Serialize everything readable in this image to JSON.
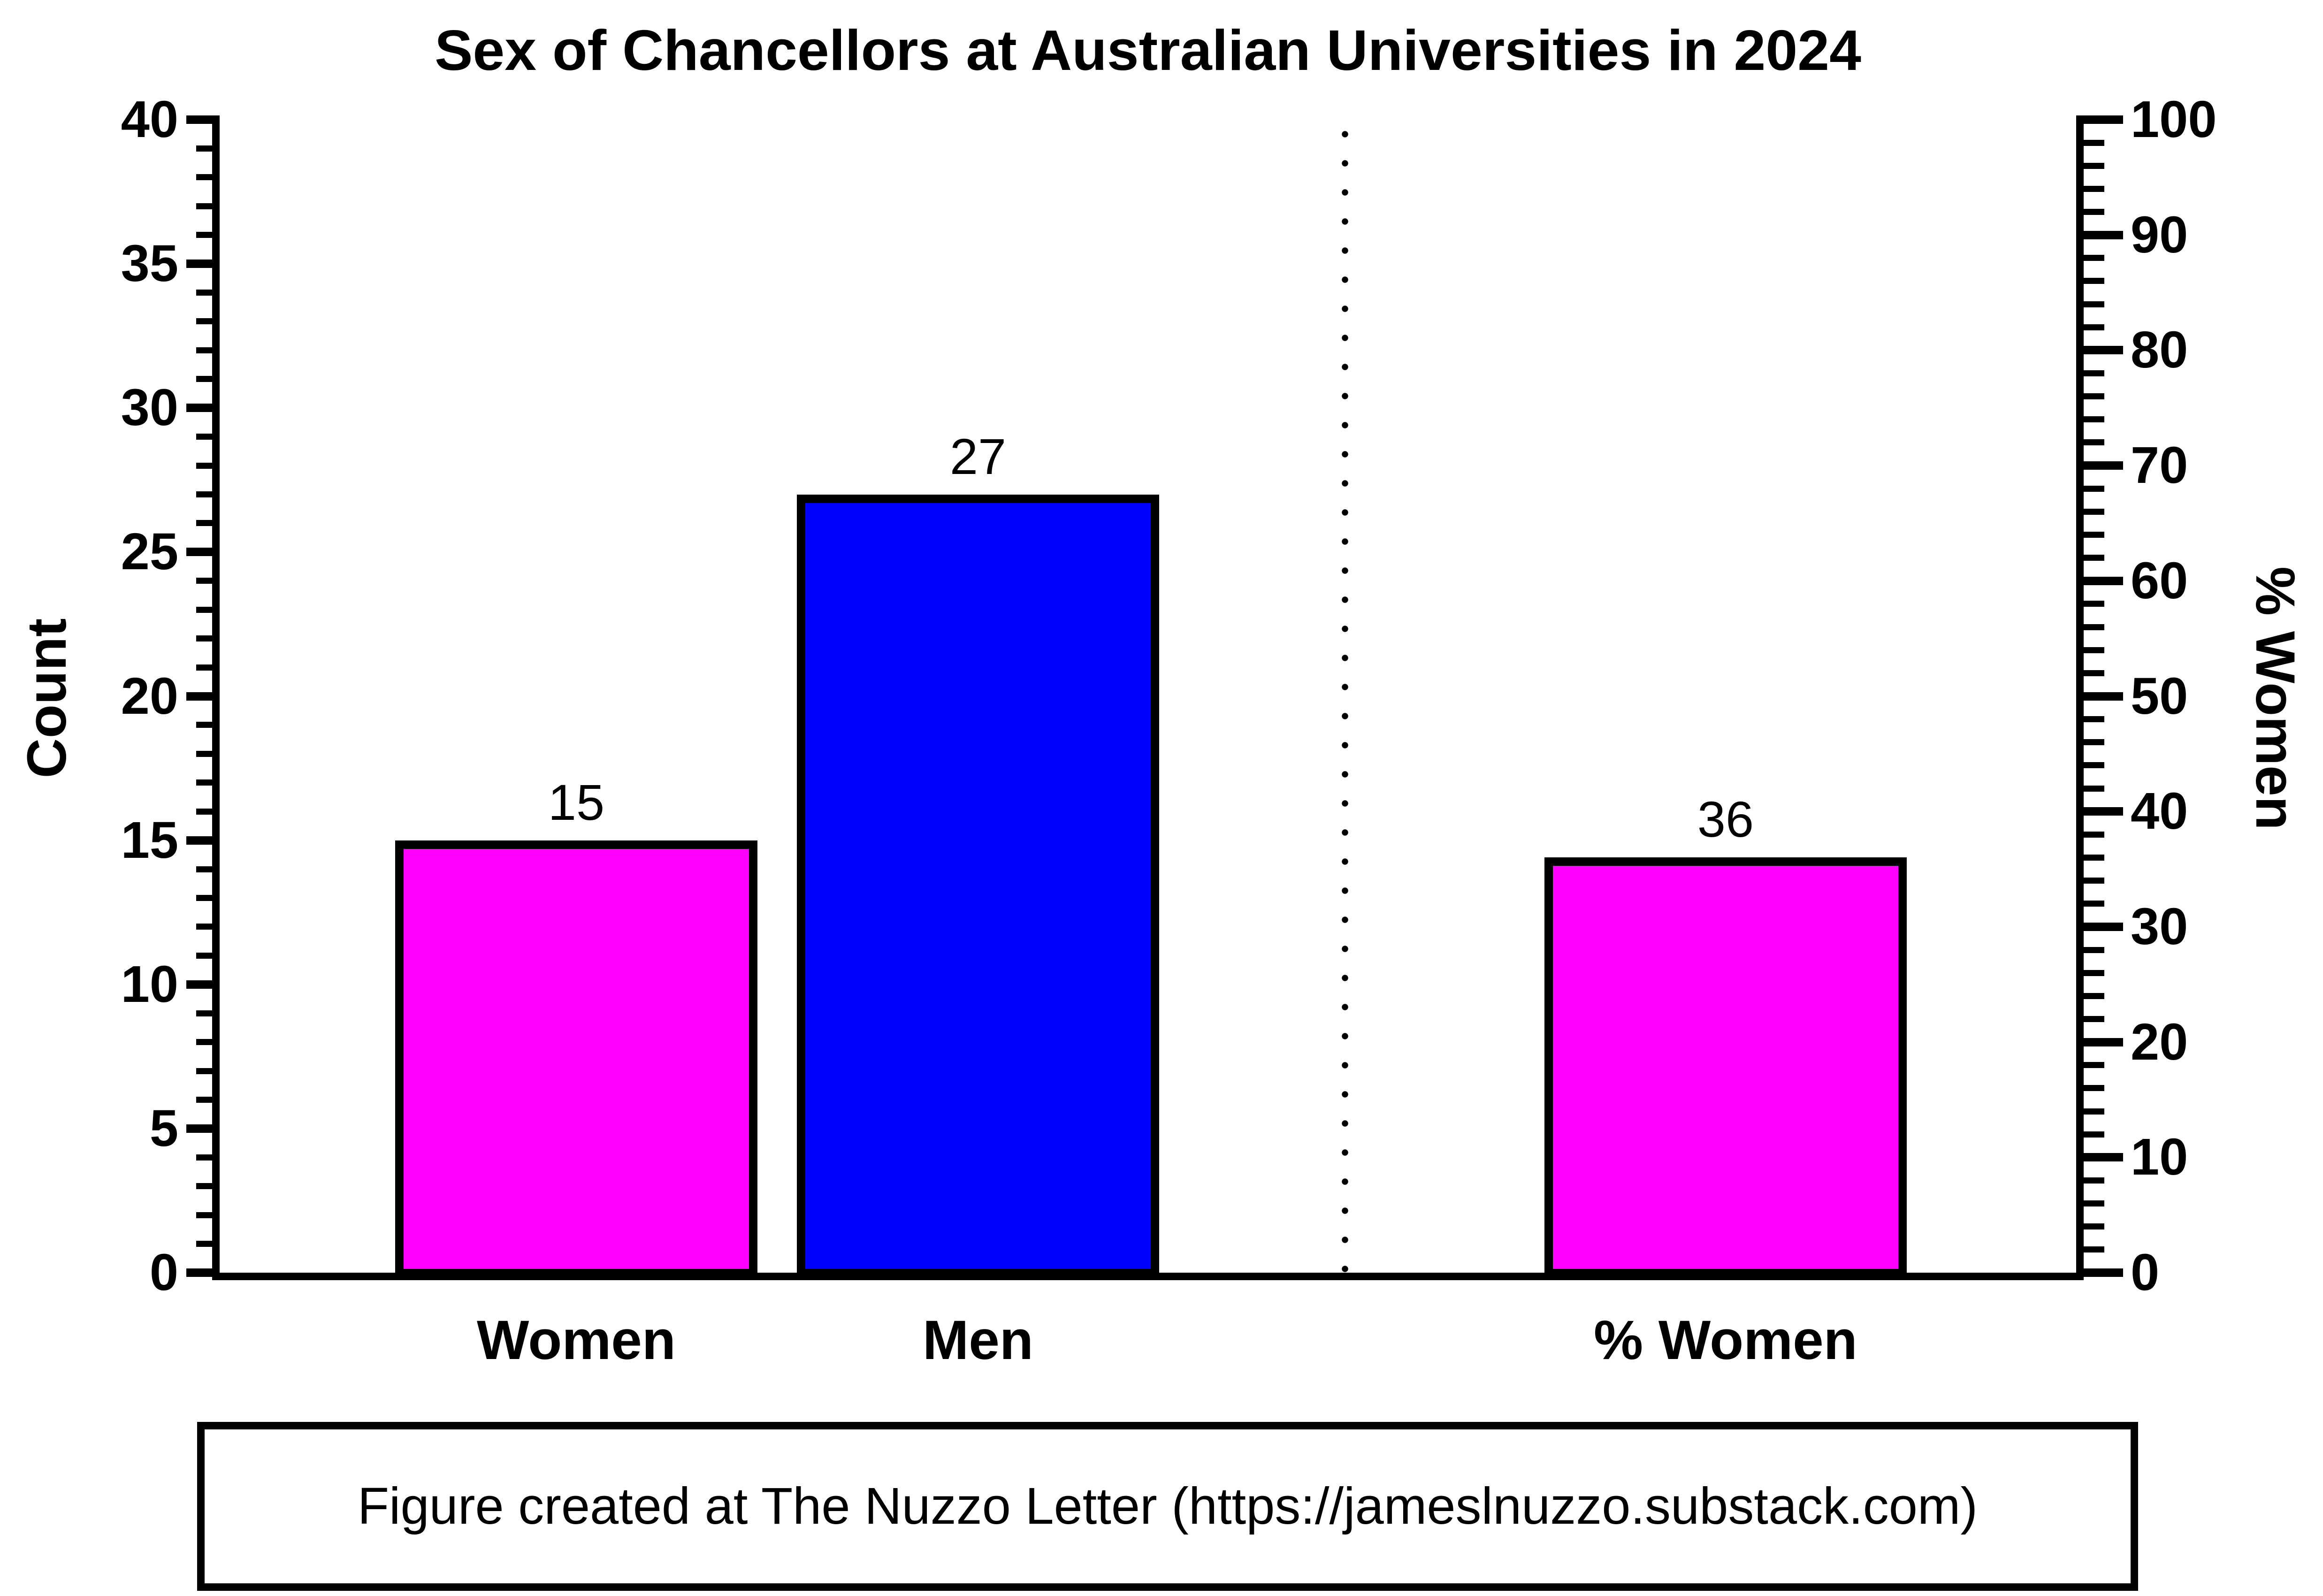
{
  "chart_data": {
    "type": "bar",
    "title": "Sex of Chancellors at Australian Universities in 2024",
    "categories": [
      "Women",
      "Men",
      "% Women"
    ],
    "bars": [
      {
        "category": "Women",
        "value": 15,
        "value_label": "15",
        "axis": "left",
        "color": "#ff00ff"
      },
      {
        "category": "Men",
        "value": 27,
        "value_label": "27",
        "axis": "left",
        "color": "#0000ff"
      },
      {
        "category": "% Women",
        "value": 36,
        "value_label": "36",
        "axis": "right",
        "color": "#ff00ff"
      }
    ],
    "left_axis": {
      "label": "Count",
      "min": 0,
      "max": 40,
      "major_tick_step": 5,
      "minor_tick_step": 1,
      "major_tick_labels": [
        "0",
        "5",
        "10",
        "15",
        "20",
        "25",
        "30",
        "35",
        "40"
      ]
    },
    "right_axis": {
      "label": "% Women",
      "min": 0,
      "max": 100,
      "major_tick_step": 10,
      "minor_tick_step": 2,
      "major_tick_labels": [
        "0",
        "10",
        "20",
        "30",
        "40",
        "50",
        "60",
        "70",
        "80",
        "90",
        "100"
      ]
    },
    "separator_line": {
      "style": "dotted",
      "orientation": "vertical",
      "between": "Men and % Women"
    },
    "grid": "off",
    "legend": "none",
    "colors": {
      "women_bars": "#ff00ff",
      "men_bar": "#0000ff",
      "axis": "#000000",
      "background": "#ffffff"
    }
  },
  "footer": {
    "text": "Figure created at The Nuzzo Letter (https://jameslnuzzo.substack.com)"
  }
}
